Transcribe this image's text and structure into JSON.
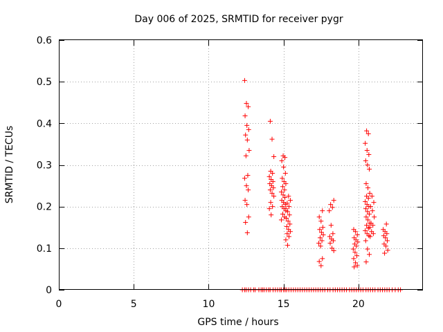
{
  "chart_data": {
    "type": "scatter",
    "title": "Day 006 of 2025, SRMTID for receiver pygr",
    "xlabel": "GPS time / hours",
    "ylabel": "SRMTID / TECUs",
    "xlim": [
      0,
      24.3
    ],
    "ylim": [
      0,
      0.6
    ],
    "xticks": [
      0,
      5,
      10,
      15,
      20
    ],
    "yticks": [
      0,
      0.1,
      0.2,
      0.3,
      0.4,
      0.5,
      0.6
    ],
    "xtick_labels": [
      "0",
      "5",
      "10",
      "15",
      "20"
    ],
    "ytick_labels": [
      "0",
      "0.1",
      "0.2",
      "0.3",
      "0.4",
      "0.5",
      "0.6"
    ],
    "grid": true,
    "marker": "+",
    "color": "#ff0000",
    "clusters": [
      {
        "x": 12.55,
        "values": [
          0.503,
          0.448,
          0.44,
          0.418,
          0.395,
          0.385,
          0.372,
          0.36,
          0.335,
          0.322,
          0.275,
          0.268,
          0.25,
          0.24,
          0.215,
          0.205,
          0.175,
          0.162,
          0.137
        ]
      },
      {
        "x": 14.2,
        "values": [
          0.405,
          0.362,
          0.32,
          0.285,
          0.28,
          0.272,
          0.265,
          0.26,
          0.255,
          0.25,
          0.245,
          0.24,
          0.232,
          0.225,
          0.21,
          0.2,
          0.195,
          0.18
        ]
      },
      {
        "x": 15.0,
        "values": [
          0.322,
          0.318,
          0.31,
          0.295,
          0.28,
          0.268,
          0.26,
          0.255,
          0.248,
          0.24,
          0.235,
          0.228,
          0.222,
          0.215,
          0.21,
          0.205,
          0.2,
          0.195,
          0.19,
          0.182,
          0.175,
          0.168
        ]
      },
      {
        "x": 15.3,
        "values": [
          0.225,
          0.215,
          0.208,
          0.2,
          0.195,
          0.188,
          0.18,
          0.172,
          0.165,
          0.158,
          0.152,
          0.145,
          0.14,
          0.135,
          0.128,
          0.12,
          0.107
        ]
      },
      {
        "x": 17.5,
        "values": [
          0.19,
          0.175,
          0.165,
          0.15,
          0.145,
          0.138,
          0.132,
          0.125,
          0.118,
          0.112,
          0.105,
          0.075,
          0.068,
          0.058
        ]
      },
      {
        "x": 18.2,
        "values": [
          0.215,
          0.205,
          0.198,
          0.19,
          0.155,
          0.135,
          0.128,
          0.122,
          0.118,
          0.112,
          0.1,
          0.094
        ]
      },
      {
        "x": 19.8,
        "values": [
          0.145,
          0.14,
          0.132,
          0.125,
          0.12,
          0.115,
          0.11,
          0.105,
          0.098,
          0.09,
          0.082,
          0.075,
          0.065,
          0.058,
          0.055
        ]
      },
      {
        "x": 20.6,
        "values": [
          0.382,
          0.375,
          0.352,
          0.335,
          0.325,
          0.31,
          0.3,
          0.29,
          0.255,
          0.245,
          0.232,
          0.225,
          0.22,
          0.212,
          0.205,
          0.2,
          0.195,
          0.188,
          0.182,
          0.175,
          0.168,
          0.16,
          0.155,
          0.148,
          0.142,
          0.135,
          0.13,
          0.118,
          0.098,
          0.085,
          0.067
        ]
      },
      {
        "x": 20.9,
        "values": [
          0.225,
          0.21,
          0.2,
          0.19,
          0.175,
          0.16,
          0.155,
          0.15,
          0.14,
          0.135,
          0.128
        ]
      },
      {
        "x": 21.8,
        "values": [
          0.158,
          0.145,
          0.14,
          0.135,
          0.13,
          0.125,
          0.118,
          0.11,
          0.105,
          0.095,
          0.088
        ]
      }
    ],
    "zero_x": [
      12.25,
      12.4,
      12.5,
      12.65,
      12.8,
      13.0,
      13.1,
      13.35,
      13.5,
      13.6,
      13.7,
      13.85,
      14.0,
      14.1,
      14.3,
      14.45,
      14.6,
      14.75,
      14.85,
      15.0,
      15.1,
      15.2,
      15.35,
      15.5,
      15.65,
      15.8,
      15.95,
      16.1,
      16.25,
      16.4,
      16.55,
      16.7,
      16.85,
      17.0,
      17.15,
      17.3,
      17.45,
      17.6,
      17.75,
      17.95,
      18.1,
      18.3,
      18.45,
      18.6,
      18.75,
      18.9,
      19.05,
      19.2,
      19.4,
      19.55,
      19.7,
      19.85,
      20.0,
      20.15,
      20.3,
      20.5,
      20.65,
      20.8,
      20.95,
      21.1,
      21.3,
      21.45,
      21.6,
      21.75,
      21.9,
      22.05,
      22.25,
      22.45,
      22.65,
      22.8
    ]
  }
}
